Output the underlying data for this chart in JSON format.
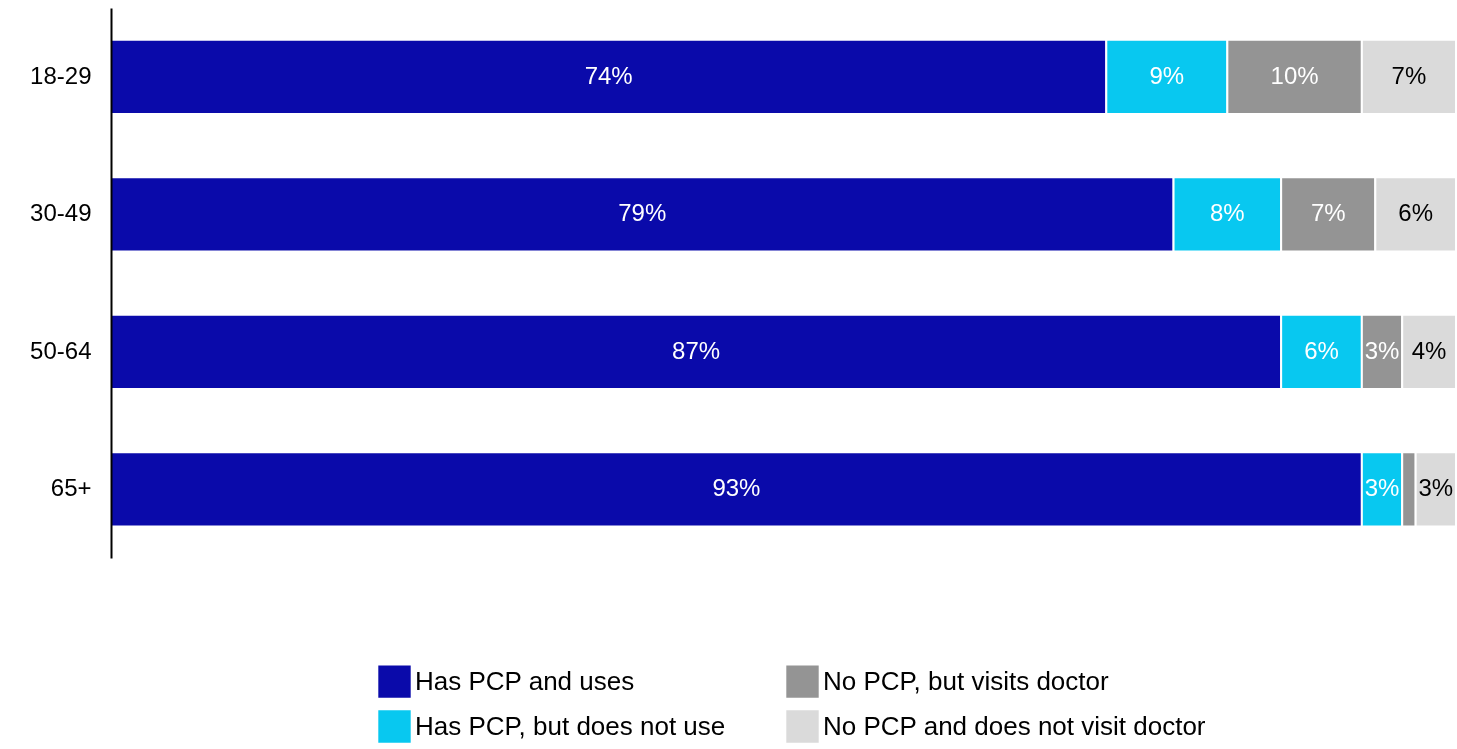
{
  "chart_data": {
    "type": "bar",
    "orientation": "horizontal",
    "stacked": true,
    "categories": [
      "18-29",
      "30-49",
      "50-64",
      "65+"
    ],
    "xlim": [
      0,
      100
    ],
    "tick_labels": "y",
    "legend": "bottom",
    "series": [
      {
        "name": "Has PCP and uses",
        "color": "#0a0aaa",
        "values": [
          74,
          79,
          87,
          93
        ],
        "value_labels": [
          "74%",
          "79%",
          "87%",
          "93%"
        ]
      },
      {
        "name": "Has PCP, but does not use",
        "color": "#08c8f0",
        "values": [
          9,
          8,
          6,
          3
        ],
        "value_labels": [
          "9%",
          "8%",
          "6%",
          "3%"
        ]
      },
      {
        "name": "No PCP, but visits doctor",
        "color": "#949494",
        "values": [
          10,
          7,
          3,
          1
        ],
        "value_labels": [
          "10%",
          "7%",
          "3%",
          null
        ]
      },
      {
        "name": "No PCP and does not visit doctor",
        "color": "#dadada",
        "values": [
          7,
          6,
          4,
          3
        ],
        "value_labels": [
          "7%",
          "6%",
          "4%",
          "3%"
        ]
      }
    ]
  }
}
